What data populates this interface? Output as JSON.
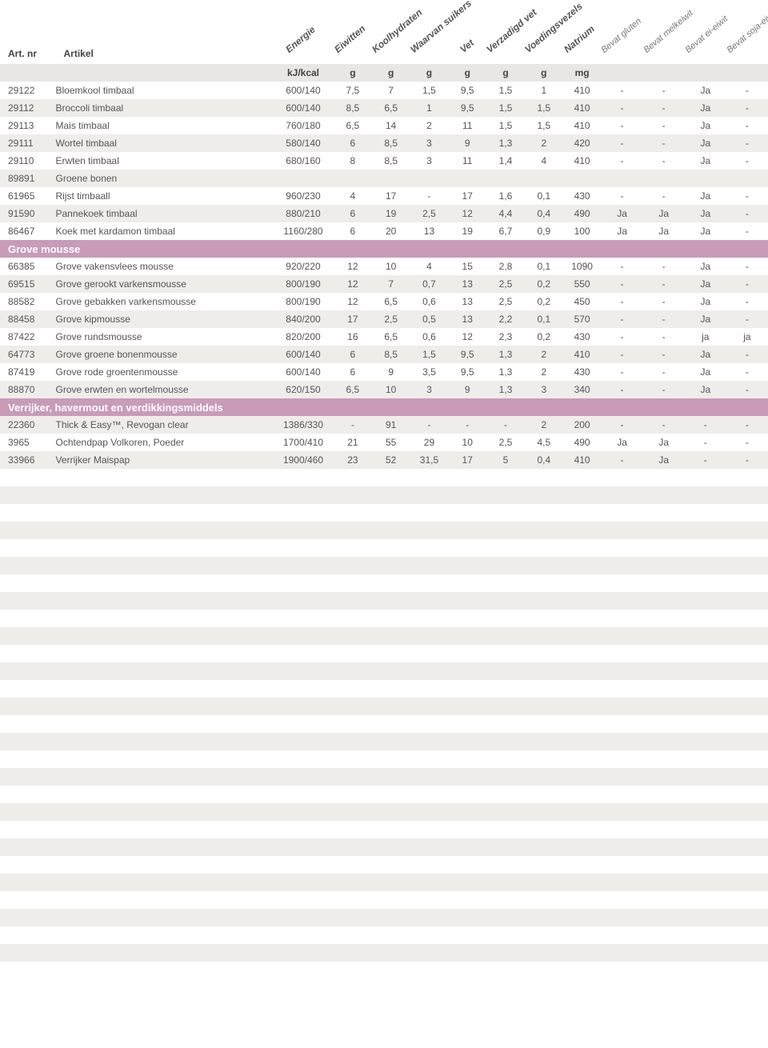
{
  "columns": {
    "artnr": {
      "label": "Art. nr",
      "unit": ""
    },
    "artikel": {
      "label": "Artikel",
      "unit": ""
    },
    "energy": {
      "label": "Energie",
      "unit": "kJ/kcal"
    },
    "protein": {
      "label": "Eiwitten",
      "unit": "g"
    },
    "carbs": {
      "label": "Koolhydraten",
      "unit": "g"
    },
    "sugars": {
      "label": "Waarvan suikers",
      "unit": "g"
    },
    "fat": {
      "label": "Vet",
      "unit": "g"
    },
    "satfat": {
      "label": "Verzadigd vet",
      "unit": "g"
    },
    "fiber": {
      "label": "Voedingsvezels",
      "unit": "g"
    },
    "sodium": {
      "label": "Natrium",
      "unit": "mg"
    },
    "gluten": {
      "label": "Bevat gluten",
      "unit": ""
    },
    "milk": {
      "label": "Bevat melkeiwit",
      "unit": ""
    },
    "egg": {
      "label": "Bevat ei-eiwit",
      "unit": ""
    },
    "soy": {
      "label": "Bevat soja-eiwit",
      "unit": ""
    }
  },
  "rows": [
    {
      "type": "data",
      "artnr": "29122",
      "artikel": "Bloemkool timbaal",
      "energy": "600/140",
      "protein": "7,5",
      "carbs": "7",
      "sugars": "1,5",
      "fat": "9,5",
      "satfat": "1,5",
      "fiber": "1",
      "sodium": "410",
      "gluten": "-",
      "milk": "-",
      "egg": "Ja",
      "soy": "-"
    },
    {
      "type": "data",
      "artnr": "29112",
      "artikel": "Broccoli timbaal",
      "energy": "600/140",
      "protein": "8,5",
      "carbs": "6,5",
      "sugars": "1",
      "fat": "9,5",
      "satfat": "1,5",
      "fiber": "1,5",
      "sodium": "410",
      "gluten": "-",
      "milk": "-",
      "egg": "Ja",
      "soy": "-"
    },
    {
      "type": "data",
      "artnr": "29113",
      "artikel": "Mais timbaal",
      "energy": "760/180",
      "protein": "6,5",
      "carbs": "14",
      "sugars": "2",
      "fat": "11",
      "satfat": "1,5",
      "fiber": "1,5",
      "sodium": "410",
      "gluten": "-",
      "milk": "-",
      "egg": "Ja",
      "soy": "-"
    },
    {
      "type": "data",
      "artnr": "29111",
      "artikel": "Wortel timbaal",
      "energy": "580/140",
      "protein": "6",
      "carbs": "8,5",
      "sugars": "3",
      "fat": "9",
      "satfat": "1,3",
      "fiber": "2",
      "sodium": "420",
      "gluten": "-",
      "milk": "-",
      "egg": "Ja",
      "soy": "-"
    },
    {
      "type": "data",
      "artnr": "29110",
      "artikel": "Erwten timbaal",
      "energy": "680/160",
      "protein": "8",
      "carbs": "8,5",
      "sugars": "3",
      "fat": "11",
      "satfat": "1,4",
      "fiber": "4",
      "sodium": "410",
      "gluten": "-",
      "milk": "-",
      "egg": "Ja",
      "soy": "-"
    },
    {
      "type": "data",
      "artnr": "89891",
      "artikel": "Groene bonen",
      "energy": "",
      "protein": "",
      "carbs": "",
      "sugars": "",
      "fat": "",
      "satfat": "",
      "fiber": "",
      "sodium": "",
      "gluten": "",
      "milk": "",
      "egg": "",
      "soy": ""
    },
    {
      "type": "data",
      "artnr": "61965",
      "artikel": "Rijst timbaall",
      "energy": "960/230",
      "protein": "4",
      "carbs": "17",
      "sugars": "-",
      "fat": "17",
      "satfat": "1,6",
      "fiber": "0,1",
      "sodium": "430",
      "gluten": "-",
      "milk": "-",
      "egg": "Ja",
      "soy": "-"
    },
    {
      "type": "data",
      "artnr": "91590",
      "artikel": "Pannekoek timbaal",
      "energy": "880/210",
      "protein": "6",
      "carbs": "19",
      "sugars": "2,5",
      "fat": "12",
      "satfat": "4,4",
      "fiber": "0,4",
      "sodium": "490",
      "gluten": "Ja",
      "milk": "Ja",
      "egg": "Ja",
      "soy": "-"
    },
    {
      "type": "data",
      "artnr": "86467",
      "artikel": "Koek met kardamon timbaal",
      "energy": "1160/280",
      "protein": "6",
      "carbs": "20",
      "sugars": "13",
      "fat": "19",
      "satfat": "6,7",
      "fiber": "0,9",
      "sodium": "100",
      "gluten": "Ja",
      "milk": "Ja",
      "egg": "Ja",
      "soy": "-"
    },
    {
      "type": "section",
      "label": "Grove mousse"
    },
    {
      "type": "data",
      "artnr": "66385",
      "artikel": "Grove vakensvlees mousse",
      "energy": "920/220",
      "protein": "12",
      "carbs": "10",
      "sugars": "4",
      "fat": "15",
      "satfat": "2,8",
      "fiber": "0,1",
      "sodium": "1090",
      "gluten": "-",
      "milk": "-",
      "egg": "Ja",
      "soy": "-"
    },
    {
      "type": "data",
      "artnr": "69515",
      "artikel": "Grove gerookt varkensmousse",
      "energy": "800/190",
      "protein": "12",
      "carbs": "7",
      "sugars": "0,7",
      "fat": "13",
      "satfat": "2,5",
      "fiber": "0,2",
      "sodium": "550",
      "gluten": "-",
      "milk": "-",
      "egg": "Ja",
      "soy": "-"
    },
    {
      "type": "data",
      "artnr": "88582",
      "artikel": "Grove gebakken varkensmousse",
      "energy": "800/190",
      "protein": "12",
      "carbs": "6,5",
      "sugars": "0,6",
      "fat": "13",
      "satfat": "2,5",
      "fiber": "0,2",
      "sodium": "450",
      "gluten": "-",
      "milk": "-",
      "egg": "Ja",
      "soy": "-"
    },
    {
      "type": "data",
      "artnr": "88458",
      "artikel": "Grove kipmousse",
      "energy": "840/200",
      "protein": "17",
      "carbs": "2,5",
      "sugars": "0,5",
      "fat": "13",
      "satfat": "2,2",
      "fiber": "0,1",
      "sodium": "570",
      "gluten": "-",
      "milk": "-",
      "egg": "Ja",
      "soy": "-"
    },
    {
      "type": "data",
      "artnr": "87422",
      "artikel": "Grove rundsmousse",
      "energy": "820/200",
      "protein": "16",
      "carbs": "6,5",
      "sugars": "0,6",
      "fat": "12",
      "satfat": "2,3",
      "fiber": "0,2",
      "sodium": "430",
      "gluten": "-",
      "milk": "-",
      "egg": "ja",
      "soy": "ja"
    },
    {
      "type": "data",
      "artnr": "64773",
      "artikel": "Grove groene bonenmousse",
      "energy": "600/140",
      "protein": "6",
      "carbs": "8,5",
      "sugars": "1,5",
      "fat": "9,5",
      "satfat": "1,3",
      "fiber": "2",
      "sodium": "410",
      "gluten": "-",
      "milk": "-",
      "egg": "Ja",
      "soy": "-"
    },
    {
      "type": "data",
      "artnr": "87419",
      "artikel": "Grove rode groentenmousse",
      "energy": "600/140",
      "protein": "6",
      "carbs": "9",
      "sugars": "3,5",
      "fat": "9,5",
      "satfat": "1,3",
      "fiber": "2",
      "sodium": "430",
      "gluten": "-",
      "milk": "-",
      "egg": "Ja",
      "soy": "-"
    },
    {
      "type": "data",
      "artnr": "88870",
      "artikel": "Grove erwten en wortelmousse",
      "energy": "620/150",
      "protein": "6,5",
      "carbs": "10",
      "sugars": "3",
      "fat": "9",
      "satfat": "1,3",
      "fiber": "3",
      "sodium": "340",
      "gluten": "-",
      "milk": "-",
      "egg": "Ja",
      "soy": "-"
    },
    {
      "type": "section",
      "label": "Verrijker, havermout en verdikkingsmiddels"
    },
    {
      "type": "data",
      "artnr": "22360",
      "artikel": "Thick & Easy™, Revogan clear",
      "energy": "1386/330",
      "protein": "-",
      "carbs": "91",
      "sugars": "-",
      "fat": "-",
      "satfat": "-",
      "fiber": "2",
      "sodium": "200",
      "gluten": "-",
      "milk": "-",
      "egg": "-",
      "soy": "-"
    },
    {
      "type": "data",
      "artnr": "3965",
      "artikel": "Ochtendpap Volkoren, Poeder",
      "energy": "1700/410",
      "protein": "21",
      "carbs": "55",
      "sugars": "29",
      "fat": "10",
      "satfat": "2,5",
      "fiber": "4,5",
      "sodium": "490",
      "gluten": "Ja",
      "milk": "Ja",
      "egg": "-",
      "soy": "-"
    },
    {
      "type": "data",
      "artnr": "33966",
      "artikel": "Verrijker Maispap",
      "energy": "1900/460",
      "protein": "23",
      "carbs": "52",
      "sugars": "31,5",
      "fat": "17",
      "satfat": "5",
      "fiber": "0,4",
      "sodium": "410",
      "gluten": "-",
      "milk": "Ja",
      "egg": "-",
      "soy": "-"
    }
  ],
  "padRows": 28,
  "colors": {
    "section_bg": "#c99bb9",
    "alt_row_bg": "#efedea",
    "unit_row_bg": "#e9e6e3"
  }
}
